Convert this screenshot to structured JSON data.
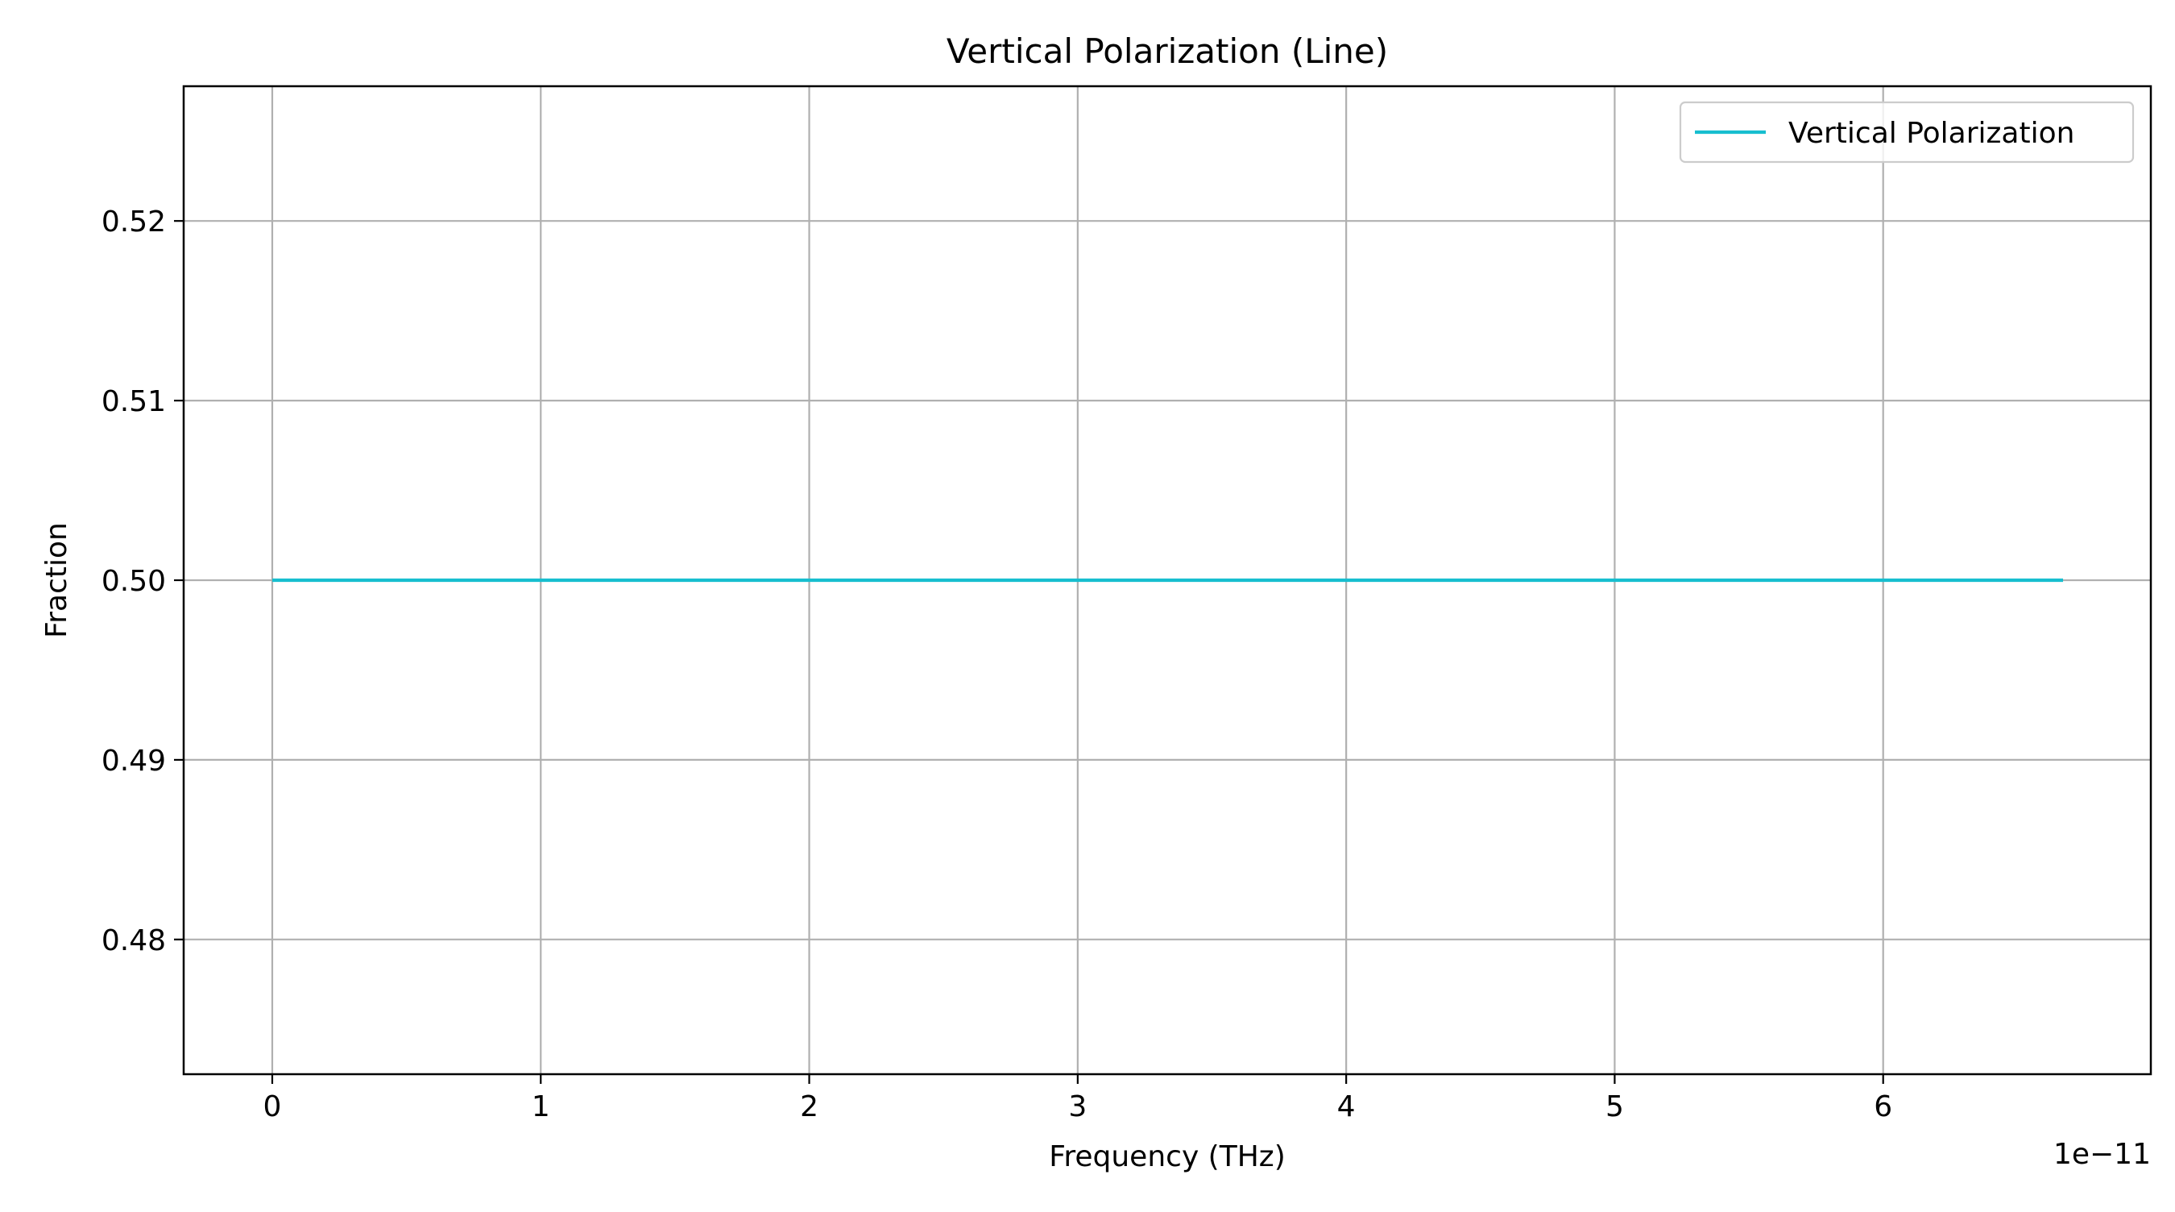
{
  "chart_data": {
    "type": "line",
    "title": "Vertical Polarization (Line)",
    "xlabel": "Frequency (THz)",
    "ylabel": "Fraction",
    "x_offset_label": "1e−11",
    "x_scale_exponent": -11,
    "xlim": [
      -3.3e-12,
      6.997e-11
    ],
    "ylim": [
      0.4725,
      0.5275
    ],
    "x_ticks": [
      0,
      1e-11,
      2e-11,
      3e-11,
      4e-11,
      5e-11,
      6e-11
    ],
    "x_tick_labels": [
      "0",
      "1",
      "2",
      "3",
      "4",
      "5",
      "6"
    ],
    "y_ticks": [
      0.48,
      0.49,
      0.5,
      0.51,
      0.52
    ],
    "y_tick_labels": [
      "0.48",
      "0.49",
      "0.50",
      "0.51",
      "0.52"
    ],
    "grid": true,
    "legend_position": "upper right",
    "series": [
      {
        "name": "Vertical Polarization",
        "color": "#17becf",
        "x": [
          0,
          6.67e-11
        ],
        "y": [
          0.5,
          0.5
        ]
      }
    ]
  }
}
